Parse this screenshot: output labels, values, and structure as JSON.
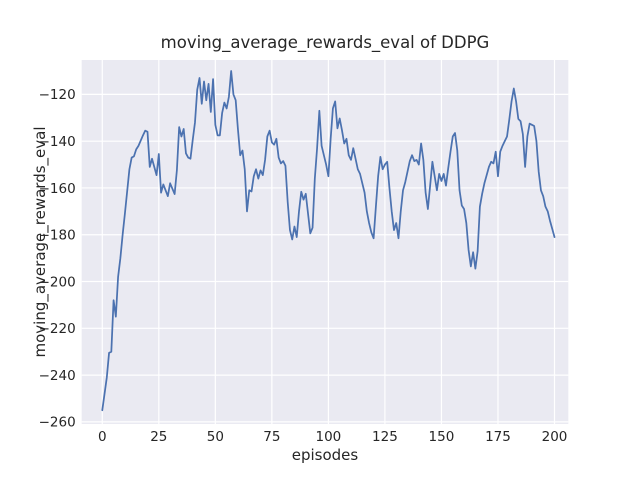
{
  "figure": {
    "title": "moving_average_rewards_eval of DDPG",
    "xlabel": "episodes",
    "ylabel": "moving_average_rewards_eval",
    "background_color": "#ffffff",
    "axes_background_color": "#eaeaf2",
    "grid_color": "#ffffff",
    "text_color": "#262626"
  },
  "chart_data": {
    "type": "line",
    "title": "moving_average_rewards_eval of DDPG",
    "xlabel": "episodes",
    "ylabel": "moving_average_rewards_eval",
    "grid": true,
    "legend": false,
    "xlim": [
      -9.1,
      206.1
    ],
    "ylim": [
      -260.9,
      -105.3
    ],
    "xticks": [
      0,
      25,
      50,
      75,
      100,
      125,
      150,
      175,
      200
    ],
    "yticks": [
      -120,
      -140,
      -160,
      -180,
      -200,
      -220,
      -240,
      -260
    ],
    "series": [
      {
        "name": "moving_average_rewards_eval",
        "color": "#4c72b0",
        "line_width": 1.75,
        "points": [
          [
            0,
            -255
          ],
          [
            1,
            -248
          ],
          [
            2,
            -241
          ],
          [
            3,
            -230.5
          ],
          [
            4,
            -230
          ],
          [
            5,
            -208
          ],
          [
            6,
            -215
          ],
          [
            7,
            -198
          ],
          [
            8,
            -190
          ],
          [
            9,
            -180
          ],
          [
            10,
            -171
          ],
          [
            12,
            -152
          ],
          [
            13,
            -147
          ],
          [
            14,
            -146.5
          ],
          [
            15,
            -143.5
          ],
          [
            16,
            -142
          ],
          [
            18,
            -137.5
          ],
          [
            19,
            -135.5
          ],
          [
            20,
            -136
          ],
          [
            21,
            -151
          ],
          [
            22,
            -147.5
          ],
          [
            24,
            -154.5
          ],
          [
            25,
            -145.5
          ],
          [
            26,
            -162
          ],
          [
            27,
            -158.5
          ],
          [
            29,
            -163.5
          ],
          [
            30,
            -158
          ],
          [
            32,
            -162.6
          ],
          [
            33,
            -152.4
          ],
          [
            34,
            -134
          ],
          [
            35,
            -138
          ],
          [
            36,
            -134.8
          ],
          [
            37,
            -145.2
          ],
          [
            38,
            -147
          ],
          [
            39,
            -147.5
          ],
          [
            40,
            -139.5
          ],
          [
            41,
            -132
          ],
          [
            42,
            -118
          ],
          [
            43,
            -113
          ],
          [
            44,
            -124
          ],
          [
            45,
            -114.5
          ],
          [
            46,
            -122.5
          ],
          [
            47,
            -115.5
          ],
          [
            48,
            -127.5
          ],
          [
            49,
            -113.5
          ],
          [
            50,
            -133
          ],
          [
            51,
            -137.5
          ],
          [
            52,
            -137.5
          ],
          [
            53,
            -128
          ],
          [
            54,
            -123.5
          ],
          [
            55,
            -126
          ],
          [
            56,
            -121
          ],
          [
            57,
            -110
          ],
          [
            58,
            -120
          ],
          [
            59,
            -122.5
          ],
          [
            60,
            -135
          ],
          [
            61,
            -146
          ],
          [
            62,
            -144
          ],
          [
            63,
            -152
          ],
          [
            64,
            -170
          ],
          [
            65,
            -161
          ],
          [
            66,
            -161.5
          ],
          [
            67,
            -155
          ],
          [
            68,
            -152
          ],
          [
            69,
            -156
          ],
          [
            70,
            -152.5
          ],
          [
            71,
            -154.5
          ],
          [
            72,
            -148
          ],
          [
            73,
            -138
          ],
          [
            74,
            -135.5
          ],
          [
            75,
            -140.5
          ],
          [
            76,
            -141.5
          ],
          [
            77,
            -139
          ],
          [
            78,
            -147
          ],
          [
            79,
            -149.5
          ],
          [
            80,
            -148.5
          ],
          [
            81,
            -150.5
          ],
          [
            82,
            -166
          ],
          [
            83,
            -178
          ],
          [
            84,
            -182
          ],
          [
            85,
            -176.5
          ],
          [
            86,
            -181
          ],
          [
            87,
            -170
          ],
          [
            88,
            -161.6
          ],
          [
            89,
            -165
          ],
          [
            90,
            -162.5
          ],
          [
            91,
            -171
          ],
          [
            92,
            -179.4
          ],
          [
            93,
            -177
          ],
          [
            94,
            -156
          ],
          [
            95,
            -143
          ],
          [
            96,
            -127
          ],
          [
            97,
            -142
          ],
          [
            98,
            -146
          ],
          [
            99,
            -150
          ],
          [
            100,
            -155
          ],
          [
            101,
            -139
          ],
          [
            102,
            -126
          ],
          [
            103,
            -123
          ],
          [
            104,
            -134.5
          ],
          [
            105,
            -130.3
          ],
          [
            106,
            -135.3
          ],
          [
            107,
            -141
          ],
          [
            108,
            -139
          ],
          [
            109,
            -146
          ],
          [
            110,
            -148
          ],
          [
            111,
            -143
          ],
          [
            112,
            -147.5
          ],
          [
            113,
            -152
          ],
          [
            114,
            -154
          ],
          [
            115,
            -158
          ],
          [
            116,
            -162
          ],
          [
            117,
            -170
          ],
          [
            118,
            -175
          ],
          [
            119,
            -179
          ],
          [
            120,
            -181.5
          ],
          [
            121,
            -168
          ],
          [
            122,
            -155
          ],
          [
            123,
            -146.7
          ],
          [
            124,
            -152
          ],
          [
            125,
            -150
          ],
          [
            126,
            -148.8
          ],
          [
            127,
            -160
          ],
          [
            128,
            -170
          ],
          [
            129,
            -178
          ],
          [
            130,
            -175
          ],
          [
            131,
            -181.5
          ],
          [
            132,
            -170
          ],
          [
            133,
            -161
          ],
          [
            134,
            -157.5
          ],
          [
            135,
            -153
          ],
          [
            136,
            -148.5
          ],
          [
            137,
            -146
          ],
          [
            138,
            -148.5
          ],
          [
            139,
            -148
          ],
          [
            140,
            -150
          ],
          [
            141,
            -141
          ],
          [
            142,
            -148
          ],
          [
            143,
            -162
          ],
          [
            144,
            -169
          ],
          [
            145,
            -159
          ],
          [
            146,
            -148.8
          ],
          [
            147,
            -155
          ],
          [
            148,
            -161
          ],
          [
            149,
            -154
          ],
          [
            150,
            -157
          ],
          [
            151,
            -154
          ],
          [
            152,
            -159
          ],
          [
            153,
            -151.5
          ],
          [
            154,
            -144.5
          ],
          [
            155,
            -138
          ],
          [
            156,
            -136.5
          ],
          [
            157,
            -144
          ],
          [
            158,
            -161
          ],
          [
            159,
            -167.5
          ],
          [
            160,
            -169
          ],
          [
            161,
            -175
          ],
          [
            162,
            -186.5
          ],
          [
            163,
            -193.5
          ],
          [
            164,
            -187.5
          ],
          [
            165,
            -194.5
          ],
          [
            166,
            -187
          ],
          [
            167,
            -168
          ],
          [
            168,
            -162.5
          ],
          [
            169,
            -158
          ],
          [
            170,
            -154.5
          ],
          [
            171,
            -151
          ],
          [
            172,
            -148.8
          ],
          [
            173,
            -149.5
          ],
          [
            174,
            -144.5
          ],
          [
            175,
            -155
          ],
          [
            176,
            -144.5
          ],
          [
            177,
            -142
          ],
          [
            178,
            -140
          ],
          [
            179,
            -138
          ],
          [
            180,
            -130.8
          ],
          [
            181,
            -123
          ],
          [
            182,
            -117.5
          ],
          [
            183,
            -123
          ],
          [
            184,
            -130.5
          ],
          [
            185,
            -131.5
          ],
          [
            186,
            -137
          ],
          [
            187,
            -151
          ],
          [
            188,
            -138
          ],
          [
            189,
            -132.5
          ],
          [
            190,
            -133
          ],
          [
            191,
            -133.5
          ],
          [
            192,
            -140
          ],
          [
            193,
            -153
          ],
          [
            194,
            -161
          ],
          [
            195,
            -163.5
          ],
          [
            196,
            -168
          ],
          [
            197,
            -170
          ],
          [
            198,
            -174
          ],
          [
            199,
            -177.5
          ],
          [
            200,
            -181
          ]
        ]
      }
    ]
  }
}
